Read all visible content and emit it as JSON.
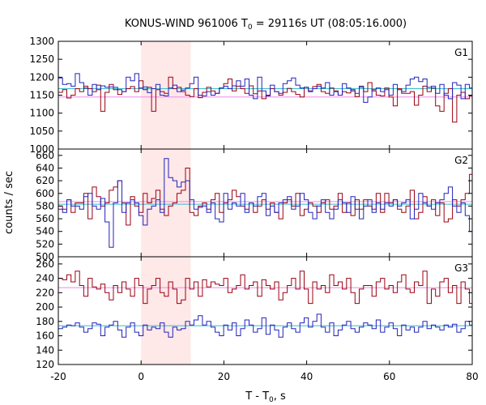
{
  "chart_data": {
    "type": "line",
    "title": {
      "main": "KONUS-WIND 961006 T",
      "sub": "0",
      "rest": " = 29116s UT (08:05:16.000)"
    },
    "xlabel": {
      "main": "T - T",
      "sub": "0",
      "rest": ", s"
    },
    "ylabel": "counts / sec",
    "xlim": [
      -20,
      80
    ],
    "x_ticks": [
      -20,
      0,
      20,
      40,
      60,
      80
    ],
    "highlight": {
      "x_from": 0,
      "x_to": 12,
      "color": "#ffe8e8"
    },
    "colors": {
      "red": "#990011",
      "blue": "#2222bb",
      "pink": "#ee88ee",
      "cyan": "#33bbcc"
    },
    "step": 1.024,
    "panels": [
      {
        "label": "G1",
        "ylim": [
          1000,
          1300
        ],
        "y_ticks": [
          1000,
          1050,
          1100,
          1150,
          1200,
          1250,
          1300
        ],
        "series": [
          {
            "color": "red",
            "values": [
              1158,
              1165,
              1142,
              1150,
              1168,
              1160,
              1175,
              1168,
              1160,
              1178,
              1105,
              1158,
              1180,
              1165,
              1152,
              1160,
              1168,
              1174,
              1160,
              1190,
              1165,
              1172,
              1105,
              1165,
              1160,
              1155,
              1200,
              1168,
              1172,
              1160,
              1150,
              1146,
              1168,
              1143,
              1158,
              1172,
              1162,
              1155,
              1170,
              1182,
              1195,
              1162,
              1175,
              1168,
              1155,
              1176,
              1154,
              1162,
              1140,
              1150,
              1168,
              1160,
              1150,
              1158,
              1169,
              1160,
              1152,
              1145,
              1172,
              1162,
              1174,
              1180,
              1160,
              1155,
              1170,
              1162,
              1150,
              1160,
              1156,
              1165,
              1146,
              1172,
              1160,
              1185,
              1162,
              1150,
              1148,
              1170,
              1145,
              1120,
              1168,
              1155,
              1155,
              1160,
              1122,
              1150,
              1175,
              1160,
              1170,
              1120,
              1105,
              1155,
              1168,
              1075,
              1150,
              1158,
              1140,
              1148
            ]
          },
          {
            "color": "blue",
            "values": [
              1198,
              1180,
              1182,
              1175,
              1210,
              1185,
              1170,
              1150,
              1180,
              1165,
              1176,
              1172,
              1173,
              1172,
              1165,
              1160,
              1200,
              1190,
              1210,
              1170,
              1173,
              1157,
              1168,
              1180,
              1150,
              1148,
              1170,
              1178,
              1160,
              1164,
              1170,
              1182,
              1200,
              1150,
              1148,
              1160,
              1150,
              1155,
              1170,
              1175,
              1168,
              1176,
              1190,
              1175,
              1195,
              1150,
              1140,
              1200,
              1162,
              1148,
              1178,
              1160,
              1155,
              1182,
              1190,
              1198,
              1178,
              1170,
              1172,
              1160,
              1168,
              1175,
              1170,
              1185,
              1150,
              1160,
              1150,
              1182,
              1170,
              1162,
              1155,
              1175,
              1130,
              1145,
              1165,
              1170,
              1160,
              1165,
              1150,
              1180,
              1165,
              1160,
              1178,
              1195,
              1200,
              1188,
              1195,
              1172,
              1175,
              1155,
              1180,
              1150,
              1140,
              1185,
              1178,
              1140,
              1180,
              1170
            ]
          }
        ],
        "fits": [
          {
            "color": "pink",
            "value": 1145
          },
          {
            "color": "cyan",
            "value": 1168
          }
        ]
      },
      {
        "label": "G2",
        "ylim": [
          500,
          670
        ],
        "y_ticks": [
          500,
          520,
          540,
          560,
          580,
          600,
          620,
          640,
          660
        ],
        "series": [
          {
            "color": "red",
            "values": [
              580,
              575,
              590,
              570,
              585,
              585,
              600,
              560,
              610,
              595,
              580,
              585,
              605,
              610,
              620,
              585,
              550,
              595,
              580,
              570,
              600,
              585,
              592,
              605,
              575,
              565,
              580,
              585,
              600,
              605,
              640,
              570,
              565,
              580,
              585,
              575,
              590,
              600,
              570,
              585,
              590,
              605,
              595,
              580,
              575,
              585,
              570,
              580,
              590,
              575,
              585,
              570,
              560,
              585,
              590,
              580,
              600,
              565,
              575,
              585,
              580,
              570,
              585,
              590,
              575,
              580,
              600,
              570,
              585,
              565,
              590,
              575,
              590,
              580,
              575,
              600,
              570,
              600,
              585,
              590,
              575,
              570,
              580,
              605,
              560,
              570,
              595,
              580,
              590,
              565,
              585,
              555,
              560,
              590,
              580,
              590,
              600,
              630
            ]
          },
          {
            "color": "blue",
            "values": [
              575,
              570,
              590,
              580,
              580,
              575,
              595,
              600,
              580,
              575,
              592,
              555,
              515,
              585,
              620,
              570,
              585,
              590,
              585,
              565,
              550,
              575,
              580,
              590,
              570,
              655,
              625,
              620,
              610,
              618,
              620,
              590,
              575,
              578,
              580,
              570,
              585,
              560,
              555,
              600,
              575,
              585,
              580,
              600,
              570,
              585,
              580,
              595,
              600,
              565,
              580,
              570,
              585,
              590,
              595,
              575,
              580,
              600,
              590,
              570,
              560,
              580,
              590,
              570,
              560,
              575,
              590,
              585,
              570,
              595,
              575,
              560,
              580,
              590,
              570,
              585,
              575,
              585,
              580,
              590,
              580,
              585,
              590,
              560,
              575,
              600,
              585,
              580,
              575,
              585,
              590,
              600,
              610,
              580,
              570,
              585,
              565,
              540
            ]
          }
        ],
        "fits": [
          {
            "color": "pink",
            "value": 587
          },
          {
            "color": "cyan",
            "value": 583
          }
        ]
      },
      {
        "label": "G3",
        "ylim": [
          120,
          270
        ],
        "y_ticks": [
          120,
          140,
          160,
          180,
          200,
          220,
          240,
          260
        ],
        "series": [
          {
            "color": "red",
            "values": [
              240,
              238,
              245,
              235,
              250,
              230,
              215,
              240,
              228,
              225,
              232,
              220,
              210,
              230,
              220,
              235,
              225,
              215,
              240,
              230,
              205,
              225,
              230,
              240,
              220,
              215,
              235,
              225,
              205,
              210,
              240,
              225,
              235,
              215,
              238,
              228,
              235,
              232,
              230,
              240,
              220,
              225,
              230,
              245,
              225,
              230,
              235,
              215,
              238,
              230,
              225,
              235,
              210,
              220,
              230,
              240,
              225,
              250,
              225,
              205,
              235,
              225,
              230,
              220,
              245,
              230,
              235,
              225,
              240,
              220,
              205,
              225,
              230,
              230,
              215,
              235,
              240,
              225,
              230,
              220,
              235,
              245,
              225,
              220,
              235,
              230,
              250,
              205,
              225,
              215,
              235,
              240,
              220,
              230,
              205,
              235,
              225,
              205
            ]
          },
          {
            "color": "blue",
            "values": [
              170,
              172,
              175,
              174,
              178,
              172,
              165,
              170,
              178,
              176,
              160,
              172,
              175,
              180,
              168,
              158,
              172,
              178,
              165,
              160,
              175,
              168,
              172,
              170,
              178,
              165,
              158,
              172,
              168,
              170,
              180,
              175,
              182,
              188,
              175,
              180,
              172,
              165,
              160,
              175,
              168,
              178,
              160,
              170,
              182,
              175,
              165,
              170,
              185,
              162,
              175,
              168,
              158,
              172,
              178,
              170,
              165,
              178,
              185,
              172,
              180,
              190,
              172,
              165,
              178,
              160,
              168,
              175,
              180,
              170,
              165,
              172,
              178,
              175,
              170,
              182,
              165,
              172,
              178,
              170,
              160,
              175,
              168,
              172,
              165,
              172,
              180,
              170,
              175,
              172,
              168,
              175,
              172,
              176,
              165,
              170,
              180,
              175
            ]
          }
        ],
        "fits": [
          {
            "color": "pink",
            "value": 227
          },
          {
            "color": "cyan",
            "value": 174
          }
        ]
      }
    ]
  }
}
